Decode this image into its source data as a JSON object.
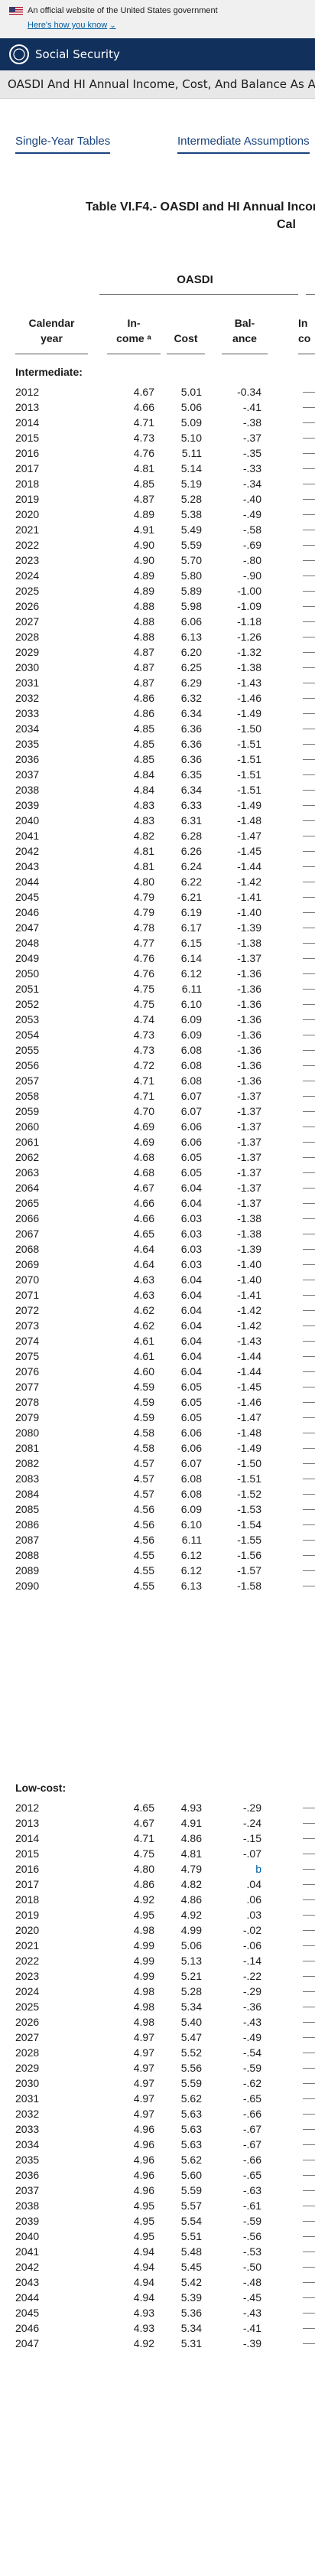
{
  "banner": {
    "official_text": "An official website of the United States government",
    "know_link": "Here's how you know"
  },
  "header": {
    "brand": "Social Security"
  },
  "page_title": "OASDI And HI Annual Income, Cost, And Balance As A Percentage Of Taxable Payroll",
  "tabs": {
    "single_year": "Single-Year Tables",
    "intermediate": "Intermediate Assumptions"
  },
  "table": {
    "title": "Table VI.F4.- OASDI and HI Annual Income",
    "subtitle": "Cal",
    "group_header": "OASDI",
    "columns": {
      "year_line1": "Calendar",
      "year_line2": "year",
      "income_line1": "In-",
      "income_line2": "come ᵃ",
      "cost": "Cost",
      "balance_line1": "Bal-",
      "balance_line2": "ance",
      "hi_income": "In",
      "hi_cost": "co"
    }
  },
  "sections": {
    "intermediate": {
      "label": "Intermediate:",
      "rows": [
        {
          "year": "2012",
          "income": "4.67",
          "cost": "5.01",
          "balance": "-0.34"
        },
        {
          "year": "2013",
          "income": "4.66",
          "cost": "5.06",
          "balance": "-.41"
        },
        {
          "year": "2014",
          "income": "4.71",
          "cost": "5.09",
          "balance": "-.38"
        },
        {
          "year": "2015",
          "income": "4.73",
          "cost": "5.10",
          "balance": "-.37"
        },
        {
          "year": "2016",
          "income": "4.76",
          "cost": "5.11",
          "balance": "-.35"
        },
        {
          "year": "2017",
          "income": "4.81",
          "cost": "5.14",
          "balance": "-.33"
        },
        {
          "year": "2018",
          "income": "4.85",
          "cost": "5.19",
          "balance": "-.34"
        },
        {
          "year": "2019",
          "income": "4.87",
          "cost": "5.28",
          "balance": "-.40"
        },
        {
          "year": "2020",
          "income": "4.89",
          "cost": "5.38",
          "balance": "-.49"
        },
        {
          "year": "2021",
          "income": "4.91",
          "cost": "5.49",
          "balance": "-.58"
        },
        {
          "year": "2022",
          "income": "4.90",
          "cost": "5.59",
          "balance": "-.69"
        },
        {
          "year": "2023",
          "income": "4.90",
          "cost": "5.70",
          "balance": "-.80"
        },
        {
          "year": "2024",
          "income": "4.89",
          "cost": "5.80",
          "balance": "-.90"
        },
        {
          "year": "2025",
          "income": "4.89",
          "cost": "5.89",
          "balance": "-1.00"
        },
        {
          "year": "2026",
          "income": "4.88",
          "cost": "5.98",
          "balance": "-1.09"
        },
        {
          "year": "2027",
          "income": "4.88",
          "cost": "6.06",
          "balance": "-1.18"
        },
        {
          "year": "2028",
          "income": "4.88",
          "cost": "6.13",
          "balance": "-1.26"
        },
        {
          "year": "2029",
          "income": "4.87",
          "cost": "6.20",
          "balance": "-1.32"
        },
        {
          "year": "2030",
          "income": "4.87",
          "cost": "6.25",
          "balance": "-1.38"
        },
        {
          "year": "2031",
          "income": "4.87",
          "cost": "6.29",
          "balance": "-1.43"
        },
        {
          "year": "2032",
          "income": "4.86",
          "cost": "6.32",
          "balance": "-1.46"
        },
        {
          "year": "2033",
          "income": "4.86",
          "cost": "6.34",
          "balance": "-1.49"
        },
        {
          "year": "2034",
          "income": "4.85",
          "cost": "6.36",
          "balance": "-1.50"
        },
        {
          "year": "2035",
          "income": "4.85",
          "cost": "6.36",
          "balance": "-1.51"
        },
        {
          "year": "2036",
          "income": "4.85",
          "cost": "6.36",
          "balance": "-1.51"
        },
        {
          "year": "2037",
          "income": "4.84",
          "cost": "6.35",
          "balance": "-1.51"
        },
        {
          "year": "2038",
          "income": "4.84",
          "cost": "6.34",
          "balance": "-1.51"
        },
        {
          "year": "2039",
          "income": "4.83",
          "cost": "6.33",
          "balance": "-1.49"
        },
        {
          "year": "2040",
          "income": "4.83",
          "cost": "6.31",
          "balance": "-1.48"
        },
        {
          "year": "2041",
          "income": "4.82",
          "cost": "6.28",
          "balance": "-1.47"
        },
        {
          "year": "2042",
          "income": "4.81",
          "cost": "6.26",
          "balance": "-1.45"
        },
        {
          "year": "2043",
          "income": "4.81",
          "cost": "6.24",
          "balance": "-1.44"
        },
        {
          "year": "2044",
          "income": "4.80",
          "cost": "6.22",
          "balance": "-1.42"
        },
        {
          "year": "2045",
          "income": "4.79",
          "cost": "6.21",
          "balance": "-1.41"
        },
        {
          "year": "2046",
          "income": "4.79",
          "cost": "6.19",
          "balance": "-1.40"
        },
        {
          "year": "2047",
          "income": "4.78",
          "cost": "6.17",
          "balance": "-1.39"
        },
        {
          "year": "2048",
          "income": "4.77",
          "cost": "6.15",
          "balance": "-1.38"
        },
        {
          "year": "2049",
          "income": "4.76",
          "cost": "6.14",
          "balance": "-1.37"
        },
        {
          "year": "2050",
          "income": "4.76",
          "cost": "6.12",
          "balance": "-1.36"
        },
        {
          "year": "2051",
          "income": "4.75",
          "cost": "6.11",
          "balance": "-1.36"
        },
        {
          "year": "2052",
          "income": "4.75",
          "cost": "6.10",
          "balance": "-1.36"
        },
        {
          "year": "2053",
          "income": "4.74",
          "cost": "6.09",
          "balance": "-1.36"
        },
        {
          "year": "2054",
          "income": "4.73",
          "cost": "6.09",
          "balance": "-1.36"
        },
        {
          "year": "2055",
          "income": "4.73",
          "cost": "6.08",
          "balance": "-1.36"
        },
        {
          "year": "2056",
          "income": "4.72",
          "cost": "6.08",
          "balance": "-1.36"
        },
        {
          "year": "2057",
          "income": "4.71",
          "cost": "6.08",
          "balance": "-1.36"
        },
        {
          "year": "2058",
          "income": "4.71",
          "cost": "6.07",
          "balance": "-1.37"
        },
        {
          "year": "2059",
          "income": "4.70",
          "cost": "6.07",
          "balance": "-1.37"
        },
        {
          "year": "2060",
          "income": "4.69",
          "cost": "6.06",
          "balance": "-1.37"
        },
        {
          "year": "2061",
          "income": "4.69",
          "cost": "6.06",
          "balance": "-1.37"
        },
        {
          "year": "2062",
          "income": "4.68",
          "cost": "6.05",
          "balance": "-1.37"
        },
        {
          "year": "2063",
          "income": "4.68",
          "cost": "6.05",
          "balance": "-1.37"
        },
        {
          "year": "2064",
          "income": "4.67",
          "cost": "6.04",
          "balance": "-1.37"
        },
        {
          "year": "2065",
          "income": "4.66",
          "cost": "6.04",
          "balance": "-1.37"
        },
        {
          "year": "2066",
          "income": "4.66",
          "cost": "6.03",
          "balance": "-1.38"
        },
        {
          "year": "2067",
          "income": "4.65",
          "cost": "6.03",
          "balance": "-1.38"
        },
        {
          "year": "2068",
          "income": "4.64",
          "cost": "6.03",
          "balance": "-1.39"
        },
        {
          "year": "2069",
          "income": "4.64",
          "cost": "6.03",
          "balance": "-1.40"
        },
        {
          "year": "2070",
          "income": "4.63",
          "cost": "6.04",
          "balance": "-1.40"
        },
        {
          "year": "2071",
          "income": "4.63",
          "cost": "6.04",
          "balance": "-1.41"
        },
        {
          "year": "2072",
          "income": "4.62",
          "cost": "6.04",
          "balance": "-1.42"
        },
        {
          "year": "2073",
          "income": "4.62",
          "cost": "6.04",
          "balance": "-1.42"
        },
        {
          "year": "2074",
          "income": "4.61",
          "cost": "6.04",
          "balance": "-1.43"
        },
        {
          "year": "2075",
          "income": "4.61",
          "cost": "6.04",
          "balance": "-1.44"
        },
        {
          "year": "2076",
          "income": "4.60",
          "cost": "6.04",
          "balance": "-1.44"
        },
        {
          "year": "2077",
          "income": "4.59",
          "cost": "6.05",
          "balance": "-1.45"
        },
        {
          "year": "2078",
          "income": "4.59",
          "cost": "6.05",
          "balance": "-1.46"
        },
        {
          "year": "2079",
          "income": "4.59",
          "cost": "6.05",
          "balance": "-1.47"
        },
        {
          "year": "2080",
          "income": "4.58",
          "cost": "6.06",
          "balance": "-1.48"
        },
        {
          "year": "2081",
          "income": "4.58",
          "cost": "6.06",
          "balance": "-1.49"
        },
        {
          "year": "2082",
          "income": "4.57",
          "cost": "6.07",
          "balance": "-1.50"
        },
        {
          "year": "2083",
          "income": "4.57",
          "cost": "6.08",
          "balance": "-1.51"
        },
        {
          "year": "2084",
          "income": "4.57",
          "cost": "6.08",
          "balance": "-1.52"
        },
        {
          "year": "2085",
          "income": "4.56",
          "cost": "6.09",
          "balance": "-1.53"
        },
        {
          "year": "2086",
          "income": "4.56",
          "cost": "6.10",
          "balance": "-1.54"
        },
        {
          "year": "2087",
          "income": "4.56",
          "cost": "6.11",
          "balance": "-1.55"
        },
        {
          "year": "2088",
          "income": "4.55",
          "cost": "6.12",
          "balance": "-1.56"
        },
        {
          "year": "2089",
          "income": "4.55",
          "cost": "6.12",
          "balance": "-1.57"
        },
        {
          "year": "2090",
          "income": "4.55",
          "cost": "6.13",
          "balance": "-1.58"
        }
      ]
    },
    "low_cost": {
      "label": "Low-cost:",
      "rows": [
        {
          "year": "2012",
          "income": "4.65",
          "cost": "4.93",
          "balance": "-.29"
        },
        {
          "year": "2013",
          "income": "4.67",
          "cost": "4.91",
          "balance": "-.24"
        },
        {
          "year": "2014",
          "income": "4.71",
          "cost": "4.86",
          "balance": "-.15"
        },
        {
          "year": "2015",
          "income": "4.75",
          "cost": "4.81",
          "balance": "-.07"
        },
        {
          "year": "2016",
          "income": "4.80",
          "cost": "4.79",
          "balance": "b"
        },
        {
          "year": "2017",
          "income": "4.86",
          "cost": "4.82",
          "balance": ".04"
        },
        {
          "year": "2018",
          "income": "4.92",
          "cost": "4.86",
          "balance": ".06"
        },
        {
          "year": "2019",
          "income": "4.95",
          "cost": "4.92",
          "balance": ".03"
        },
        {
          "year": "2020",
          "income": "4.98",
          "cost": "4.99",
          "balance": "-.02"
        },
        {
          "year": "2021",
          "income": "4.99",
          "cost": "5.06",
          "balance": "-.06"
        },
        {
          "year": "2022",
          "income": "4.99",
          "cost": "5.13",
          "balance": "-.14"
        },
        {
          "year": "2023",
          "income": "4.99",
          "cost": "5.21",
          "balance": "-.22"
        },
        {
          "year": "2024",
          "income": "4.98",
          "cost": "5.28",
          "balance": "-.29"
        },
        {
          "year": "2025",
          "income": "4.98",
          "cost": "5.34",
          "balance": "-.36"
        },
        {
          "year": "2026",
          "income": "4.98",
          "cost": "5.40",
          "balance": "-.43"
        },
        {
          "year": "2027",
          "income": "4.97",
          "cost": "5.47",
          "balance": "-.49"
        },
        {
          "year": "2028",
          "income": "4.97",
          "cost": "5.52",
          "balance": "-.54"
        },
        {
          "year": "2029",
          "income": "4.97",
          "cost": "5.56",
          "balance": "-.59"
        },
        {
          "year": "2030",
          "income": "4.97",
          "cost": "5.59",
          "balance": "-.62"
        },
        {
          "year": "2031",
          "income": "4.97",
          "cost": "5.62",
          "balance": "-.65"
        },
        {
          "year": "2032",
          "income": "4.97",
          "cost": "5.63",
          "balance": "-.66"
        },
        {
          "year": "2033",
          "income": "4.96",
          "cost": "5.63",
          "balance": "-.67"
        },
        {
          "year": "2034",
          "income": "4.96",
          "cost": "5.63",
          "balance": "-.67"
        },
        {
          "year": "2035",
          "income": "4.96",
          "cost": "5.62",
          "balance": "-.66"
        },
        {
          "year": "2036",
          "income": "4.96",
          "cost": "5.60",
          "balance": "-.65"
        },
        {
          "year": "2037",
          "income": "4.96",
          "cost": "5.59",
          "balance": "-.63"
        },
        {
          "year": "2038",
          "income": "4.95",
          "cost": "5.57",
          "balance": "-.61"
        },
        {
          "year": "2039",
          "income": "4.95",
          "cost": "5.54",
          "balance": "-.59"
        },
        {
          "year": "2040",
          "income": "4.95",
          "cost": "5.51",
          "balance": "-.56"
        },
        {
          "year": "2041",
          "income": "4.94",
          "cost": "5.48",
          "balance": "-.53"
        },
        {
          "year": "2042",
          "income": "4.94",
          "cost": "5.45",
          "balance": "-.50"
        },
        {
          "year": "2043",
          "income": "4.94",
          "cost": "5.42",
          "balance": "-.48"
        },
        {
          "year": "2044",
          "income": "4.94",
          "cost": "5.39",
          "balance": "-.45"
        },
        {
          "year": "2045",
          "income": "4.93",
          "cost": "5.36",
          "balance": "-.43"
        },
        {
          "year": "2046",
          "income": "4.93",
          "cost": "5.34",
          "balance": "-.41"
        },
        {
          "year": "2047",
          "income": "4.92",
          "cost": "5.31",
          "balance": "-.39"
        }
      ]
    }
  }
}
